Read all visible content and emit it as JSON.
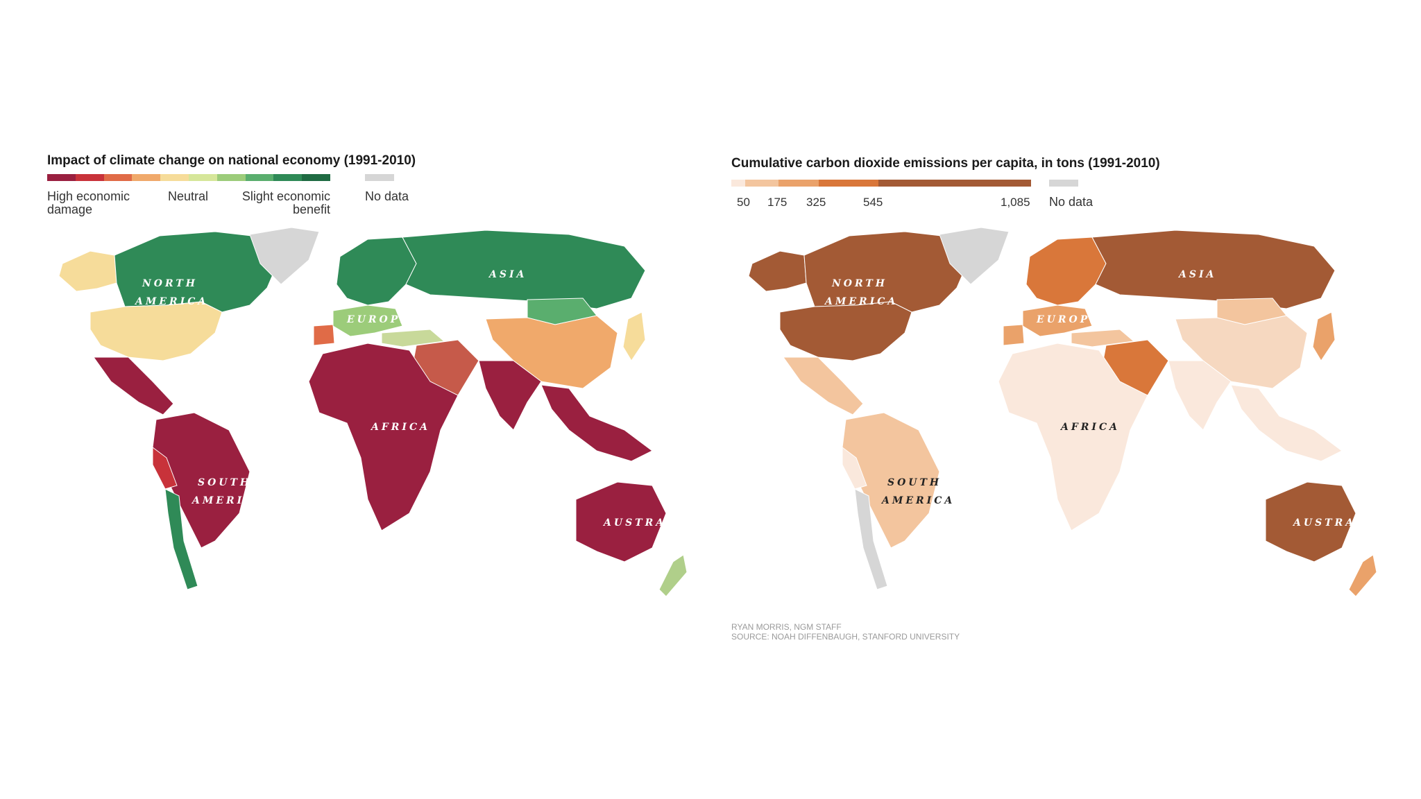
{
  "left_map": {
    "title": "Impact of climate change on national economy (1991-2010)",
    "legend": {
      "colors": [
        "#9a2040",
        "#c8323a",
        "#e06b47",
        "#f0a96b",
        "#f6dc9a",
        "#d6e69a",
        "#9ccc7a",
        "#5aae6e",
        "#2f8a57",
        "#1f6b43"
      ],
      "labels": {
        "low": "High economic damage",
        "mid": "Neutral",
        "high": "Slight economic benefit"
      },
      "no_data": "No data",
      "no_data_color": "#d6d6d6"
    },
    "continents": {
      "north_america": "NORTH AMERICA",
      "europe": "EUROPE",
      "asia": "ASIA",
      "africa": "AFRICA",
      "south_america": "SOUTH AMERICA",
      "australia": "AUSTRALIA"
    },
    "region_colors": {
      "canada": "#2f8a57",
      "usa": "#f6dc9a",
      "alaska": "#f6dc9a",
      "mexico": "#9a2040",
      "greenland": "#d6d6d6",
      "russia": "#2f8a57",
      "europe_north": "#2f8a57",
      "europe_south": "#9ccc7a",
      "spain": "#e06b47",
      "turkey": "#c8d99a",
      "middle_east": "#c65a4a",
      "china": "#f0a96b",
      "mongolia": "#5aae6e",
      "india": "#9a2040",
      "africa": "#9a2040",
      "south_america": "#9a2040",
      "chile": "#2f8a57",
      "peru": "#c8323a",
      "australia": "#9a2040",
      "new_zealand": "#b0cf8a",
      "se_asia": "#9a2040",
      "japan": "#f6dc9a"
    }
  },
  "right_map": {
    "title": "Cumulative carbon dioxide emissions per capita, in tons (1991-2010)",
    "legend": {
      "colors": [
        "#fae8dc",
        "#f3c59e",
        "#eaa26a",
        "#d9773a",
        "#a35a35"
      ],
      "ticks": [
        "50",
        "175",
        "325",
        "545",
        "1,085"
      ],
      "no_data": "No data",
      "no_data_color": "#d6d6d6"
    },
    "continents": {
      "north_america": "NORTH AMERICA",
      "europe": "EUROPE",
      "asia": "ASIA",
      "africa": "AFRICA",
      "south_america": "SOUTH AMERICA",
      "australia": "AUSTRALIA"
    },
    "region_colors": {
      "canada": "#a35a35",
      "usa": "#a35a35",
      "alaska": "#a35a35",
      "mexico": "#f3c59e",
      "greenland": "#d6d6d6",
      "russia": "#a35a35",
      "europe_north": "#d9773a",
      "europe_south": "#eaa26a",
      "spain": "#eaa26a",
      "turkey": "#f3c59e",
      "middle_east": "#d9773a",
      "china": "#f6d8c0",
      "mongolia": "#f3c59e",
      "india": "#fae8dc",
      "africa": "#fae8dc",
      "south_america": "#f3c59e",
      "chile": "#d6d6d6",
      "peru": "#fae8dc",
      "australia": "#a35a35",
      "new_zealand": "#eaa26a",
      "se_asia": "#fae8dc",
      "japan": "#eaa26a"
    }
  },
  "credits": {
    "author": "RYAN MORRIS, NGM STAFF",
    "source": "SOURCE: NOAH DIFFENBAUGH, STANFORD UNIVERSITY"
  }
}
